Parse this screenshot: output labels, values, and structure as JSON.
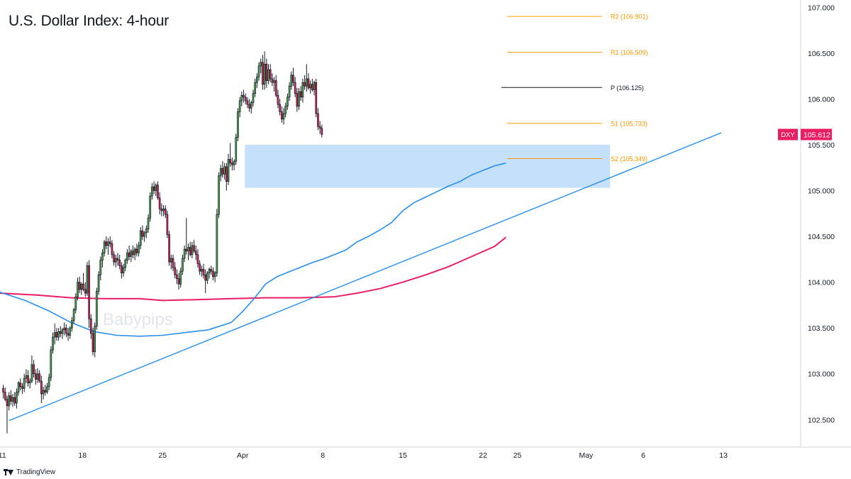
{
  "title": "U.S. Dollar Index: 4-hour",
  "watermark": "Babypips",
  "footer": {
    "brand": "TradingView"
  },
  "colors": {
    "up": "#4caf50",
    "down": "#e91e63",
    "wick": "#131722",
    "sma100": "#2a8ee8",
    "sma200": "#e91e63",
    "trendline": "#2a8ee8",
    "pivot": "#131722",
    "levels": "#ff9800",
    "zone": "#bbdaf9",
    "price_tag": "#e91e63"
  },
  "chart_data": {
    "type": "candlestick",
    "symbol": "DXY",
    "last_price": "105.612",
    "y_axis": {
      "min": 102.2,
      "max": 107.08,
      "ticks": [
        "102.500",
        "103.000",
        "103.500",
        "104.000",
        "104.500",
        "105.000",
        "105.500",
        "106.000",
        "106.500",
        "107.000"
      ]
    },
    "x_axis": {
      "ticks": [
        {
          "label": "11",
          "x": 0
        },
        {
          "label": "18",
          "x": 7
        },
        {
          "label": "25",
          "x": 14
        },
        {
          "label": "Apr",
          "x": 21
        },
        {
          "label": "8",
          "x": 28
        },
        {
          "label": "15",
          "x": 35
        },
        {
          "label": "22",
          "x": 42
        },
        {
          "label": "25",
          "x": 45
        },
        {
          "label": "May",
          "x": 51
        },
        {
          "label": "6",
          "x": 56
        },
        {
          "label": "13",
          "x": 63
        }
      ],
      "range": [
        -0.2,
        69.5
      ]
    },
    "pivot_levels": [
      {
        "name": "R2",
        "label": "R2 (106.901)",
        "value": 106.901
      },
      {
        "name": "R1",
        "label": "R1 (106.509)",
        "value": 106.509
      },
      {
        "name": "P",
        "label": "P (106.125)",
        "value": 106.125
      },
      {
        "name": "S1",
        "label": "S1 (105.733)",
        "value": 105.733
      },
      {
        "name": "S2",
        "label": "S2 (105.349)",
        "value": 105.349
      }
    ],
    "pivot_start_x": 44.1,
    "pivot_end_x": 52.4,
    "zone": {
      "x_start": 21.2,
      "x_end": 53.1,
      "low": 105.03,
      "high": 105.5
    },
    "trendline": [
      [
        0.6,
        102.49
      ],
      [
        62.8,
        105.63
      ]
    ],
    "sma100": [
      [
        -0.2,
        103.89
      ],
      [
        2,
        103.8
      ],
      [
        4,
        103.69
      ],
      [
        6,
        103.56
      ],
      [
        8,
        103.46
      ],
      [
        10,
        103.42
      ],
      [
        12,
        103.41
      ],
      [
        14,
        103.42
      ],
      [
        16,
        103.45
      ],
      [
        18,
        103.48
      ],
      [
        20,
        103.56
      ],
      [
        21,
        103.68
      ],
      [
        22,
        103.82
      ],
      [
        23,
        103.98
      ],
      [
        24,
        104.06
      ],
      [
        25,
        104.11
      ],
      [
        26,
        104.16
      ],
      [
        27,
        104.21
      ],
      [
        28,
        104.25
      ],
      [
        29,
        104.3
      ],
      [
        30,
        104.35
      ],
      [
        31,
        104.44
      ],
      [
        32,
        104.5
      ],
      [
        33,
        104.57
      ],
      [
        34,
        104.65
      ],
      [
        35,
        104.78
      ],
      [
        36,
        104.87
      ],
      [
        37,
        104.93
      ],
      [
        38,
        104.99
      ],
      [
        39,
        105.05
      ],
      [
        40,
        105.1
      ],
      [
        41,
        105.17
      ],
      [
        42,
        105.22
      ],
      [
        43,
        105.27
      ],
      [
        44,
        105.3
      ]
    ],
    "sma200": [
      [
        -0.2,
        103.88
      ],
      [
        3,
        103.86
      ],
      [
        6,
        103.83
      ],
      [
        9,
        103.82
      ],
      [
        12,
        103.82
      ],
      [
        14,
        103.8
      ],
      [
        17,
        103.81
      ],
      [
        20,
        103.82
      ],
      [
        23,
        103.83
      ],
      [
        26,
        103.83
      ],
      [
        29,
        103.84
      ],
      [
        31,
        103.88
      ],
      [
        33,
        103.93
      ],
      [
        35,
        104.0
      ],
      [
        37,
        104.08
      ],
      [
        39,
        104.17
      ],
      [
        41,
        104.28
      ],
      [
        43,
        104.39
      ],
      [
        44,
        104.49
      ]
    ],
    "candles_per_day": 6,
    "candles": [
      [
        102.84,
        102.88,
        102.73,
        102.8
      ],
      [
        102.8,
        102.85,
        102.7,
        102.72
      ],
      [
        102.72,
        102.76,
        102.35,
        102.65
      ],
      [
        102.65,
        102.8,
        102.6,
        102.76
      ],
      [
        102.76,
        102.82,
        102.66,
        102.7
      ],
      [
        102.7,
        102.78,
        102.64,
        102.74
      ],
      [
        102.74,
        102.8,
        102.65,
        102.68
      ],
      [
        102.68,
        102.84,
        102.62,
        102.8
      ],
      [
        102.8,
        102.92,
        102.76,
        102.9
      ],
      [
        102.9,
        102.95,
        102.82,
        102.86
      ],
      [
        102.86,
        102.9,
        102.78,
        102.84
      ],
      [
        102.84,
        103.0,
        102.8,
        102.95
      ],
      [
        102.95,
        103.05,
        102.9,
        102.98
      ],
      [
        102.98,
        103.04,
        102.86,
        102.9
      ],
      [
        102.9,
        102.95,
        102.84,
        102.92
      ],
      [
        102.92,
        103.2,
        102.9,
        103.1
      ],
      [
        103.1,
        103.15,
        102.96,
        103.0
      ],
      [
        103.0,
        103.05,
        102.88,
        102.94
      ],
      [
        102.94,
        103.06,
        102.9,
        103.0
      ],
      [
        103.0,
        103.04,
        102.9,
        102.92
      ],
      [
        102.92,
        102.98,
        102.68,
        102.78
      ],
      [
        102.78,
        102.86,
        102.72,
        102.82
      ],
      [
        102.82,
        102.88,
        102.76,
        102.8
      ],
      [
        102.8,
        102.9,
        102.78,
        102.86
      ],
      [
        102.86,
        103.0,
        102.82,
        102.96
      ],
      [
        102.96,
        103.3,
        102.92,
        103.26
      ],
      [
        103.26,
        103.45,
        103.22,
        103.4
      ],
      [
        103.4,
        103.55,
        103.32,
        103.45
      ],
      [
        103.45,
        103.5,
        103.36,
        103.4
      ],
      [
        103.4,
        103.5,
        103.36,
        103.46
      ],
      [
        103.46,
        103.52,
        103.4,
        103.44
      ],
      [
        103.44,
        103.5,
        103.38,
        103.48
      ],
      [
        103.48,
        103.56,
        103.42,
        103.5
      ],
      [
        103.5,
        103.54,
        103.4,
        103.44
      ],
      [
        103.44,
        103.5,
        103.36,
        103.42
      ],
      [
        103.42,
        103.52,
        103.38,
        103.5
      ],
      [
        103.5,
        103.62,
        103.46,
        103.58
      ],
      [
        103.58,
        103.72,
        103.55,
        103.7
      ],
      [
        103.7,
        103.88,
        103.66,
        103.84
      ],
      [
        103.84,
        104.05,
        103.8,
        104.0
      ],
      [
        104.0,
        104.06,
        103.88,
        103.92
      ],
      [
        103.92,
        104.0,
        103.86,
        103.98
      ],
      [
        103.98,
        104.1,
        103.9,
        103.92
      ],
      [
        103.92,
        104.0,
        103.84,
        103.88
      ],
      [
        103.88,
        104.22,
        103.85,
        104.18
      ],
      [
        104.18,
        104.24,
        103.5,
        103.6
      ],
      [
        103.6,
        103.65,
        103.38,
        103.44
      ],
      [
        103.44,
        103.5,
        103.2,
        103.24
      ],
      [
        103.24,
        103.56,
        103.18,
        103.52
      ],
      [
        103.52,
        103.94,
        103.48,
        103.9
      ],
      [
        103.9,
        104.12,
        103.86,
        104.08
      ],
      [
        104.08,
        104.28,
        104.02,
        104.24
      ],
      [
        104.24,
        104.36,
        104.16,
        104.32
      ],
      [
        104.32,
        104.46,
        104.28,
        104.44
      ],
      [
        104.44,
        104.5,
        104.36,
        104.4
      ],
      [
        104.4,
        104.48,
        104.3,
        104.44
      ],
      [
        104.44,
        104.5,
        104.38,
        104.42
      ],
      [
        104.42,
        104.46,
        104.26,
        104.3
      ],
      [
        104.3,
        104.34,
        104.18,
        104.22
      ],
      [
        104.22,
        104.3,
        104.16,
        104.26
      ],
      [
        104.26,
        104.32,
        104.18,
        104.24
      ],
      [
        104.24,
        104.3,
        104.14,
        104.18
      ],
      [
        104.18,
        104.22,
        104.04,
        104.1
      ],
      [
        104.1,
        104.2,
        104.06,
        104.16
      ],
      [
        104.16,
        104.26,
        104.12,
        104.24
      ],
      [
        104.24,
        104.36,
        104.2,
        104.32
      ],
      [
        104.32,
        104.4,
        104.24,
        104.28
      ],
      [
        104.28,
        104.36,
        104.22,
        104.34
      ],
      [
        104.34,
        104.4,
        104.26,
        104.3
      ],
      [
        104.3,
        104.38,
        104.24,
        104.36
      ],
      [
        104.36,
        104.42,
        104.28,
        104.32
      ],
      [
        104.32,
        104.44,
        104.28,
        104.4
      ],
      [
        104.4,
        104.6,
        104.36,
        104.56
      ],
      [
        104.56,
        104.62,
        104.46,
        104.5
      ],
      [
        104.5,
        104.56,
        104.44,
        104.54
      ],
      [
        104.54,
        104.62,
        104.48,
        104.58
      ],
      [
        104.58,
        104.74,
        104.54,
        104.7
      ],
      [
        104.7,
        104.98,
        104.66,
        104.94
      ],
      [
        104.94,
        105.08,
        104.9,
        105.04
      ],
      [
        105.04,
        105.1,
        104.96,
        105.0
      ],
      [
        105.0,
        105.08,
        104.94,
        105.06
      ],
      [
        105.06,
        105.1,
        104.9,
        104.92
      ],
      [
        104.92,
        104.98,
        104.74,
        104.8
      ],
      [
        104.8,
        104.86,
        104.72,
        104.78
      ],
      [
        104.78,
        104.84,
        104.72,
        104.8
      ],
      [
        104.8,
        104.84,
        104.7,
        104.74
      ],
      [
        104.74,
        104.78,
        104.48,
        104.52
      ],
      [
        104.52,
        104.56,
        104.18,
        104.22
      ],
      [
        104.22,
        104.3,
        104.14,
        104.26
      ],
      [
        104.26,
        104.3,
        104.12,
        104.16
      ],
      [
        104.16,
        104.22,
        104.04,
        104.08
      ],
      [
        104.08,
        104.14,
        103.98,
        104.04
      ],
      [
        104.04,
        104.1,
        103.92,
        103.98
      ],
      [
        103.98,
        104.16,
        103.94,
        104.12
      ],
      [
        104.12,
        104.3,
        104.08,
        104.26
      ],
      [
        104.26,
        104.4,
        104.22,
        104.36
      ],
      [
        104.36,
        104.7,
        104.3,
        104.34
      ],
      [
        104.34,
        104.42,
        104.24,
        104.38
      ],
      [
        104.38,
        104.44,
        104.28,
        104.3
      ],
      [
        104.3,
        104.44,
        104.26,
        104.4
      ],
      [
        104.4,
        104.46,
        104.32,
        104.34
      ],
      [
        104.34,
        104.4,
        104.24,
        104.3
      ],
      [
        104.3,
        104.36,
        104.16,
        104.2
      ],
      [
        104.2,
        104.24,
        104.08,
        104.12
      ],
      [
        104.12,
        104.18,
        104.06,
        104.14
      ],
      [
        104.14,
        104.2,
        104.04,
        104.08
      ],
      [
        104.08,
        104.14,
        103.88,
        104.02
      ],
      [
        104.02,
        104.12,
        103.98,
        104.1
      ],
      [
        104.1,
        104.16,
        104.04,
        104.14
      ],
      [
        104.14,
        104.18,
        104.08,
        104.12
      ],
      [
        104.12,
        104.16,
        104.02,
        104.06
      ],
      [
        104.06,
        104.12,
        104.0,
        104.1
      ],
      [
        104.1,
        104.8,
        104.06,
        104.74
      ],
      [
        104.74,
        105.2,
        104.7,
        105.16
      ],
      [
        105.16,
        105.28,
        105.1,
        105.24
      ],
      [
        105.24,
        105.32,
        105.14,
        105.18
      ],
      [
        105.18,
        105.3,
        105.12,
        105.26
      ],
      [
        105.26,
        105.3,
        105.0,
        105.1
      ],
      [
        105.1,
        105.4,
        105.06,
        105.34
      ],
      [
        105.34,
        105.52,
        105.26,
        105.3
      ],
      [
        105.3,
        105.36,
        105.22,
        105.28
      ],
      [
        105.28,
        105.34,
        105.22,
        105.32
      ],
      [
        105.32,
        105.62,
        105.28,
        105.58
      ],
      [
        105.58,
        105.9,
        105.54,
        105.86
      ],
      [
        105.86,
        106.02,
        105.8,
        105.98
      ],
      [
        105.98,
        106.08,
        105.92,
        106.04
      ],
      [
        106.04,
        106.1,
        105.96,
        106.02
      ],
      [
        106.02,
        106.06,
        105.94,
        105.98
      ],
      [
        105.98,
        106.02,
        105.9,
        105.94
      ],
      [
        105.94,
        106.0,
        105.86,
        105.9
      ],
      [
        105.9,
        105.98,
        105.84,
        105.96
      ],
      [
        105.96,
        106.1,
        105.92,
        106.06
      ],
      [
        106.06,
        106.22,
        106.02,
        106.18
      ],
      [
        106.18,
        106.28,
        106.12,
        106.24
      ],
      [
        106.24,
        106.4,
        106.2,
        106.36
      ],
      [
        106.36,
        106.44,
        106.28,
        106.4
      ],
      [
        106.4,
        106.48,
        106.1,
        106.16
      ],
      [
        106.16,
        106.52,
        106.1,
        106.38
      ],
      [
        106.38,
        106.44,
        106.12,
        106.2
      ],
      [
        106.2,
        106.38,
        106.16,
        106.32
      ],
      [
        106.32,
        106.38,
        106.18,
        106.22
      ],
      [
        106.22,
        106.28,
        106.14,
        106.18
      ],
      [
        106.18,
        106.24,
        106.08,
        106.2
      ],
      [
        106.2,
        106.26,
        106.02,
        106.04
      ],
      [
        106.04,
        106.1,
        105.9,
        105.94
      ],
      [
        105.94,
        106.0,
        105.82,
        105.86
      ],
      [
        105.86,
        105.92,
        105.74,
        105.78
      ],
      [
        105.78,
        105.9,
        105.72,
        105.84
      ],
      [
        105.84,
        105.96,
        105.8,
        105.92
      ],
      [
        105.92,
        106.06,
        105.88,
        106.02
      ],
      [
        106.02,
        106.18,
        105.98,
        106.14
      ],
      [
        106.14,
        106.3,
        106.1,
        106.26
      ],
      [
        106.26,
        106.34,
        106.14,
        106.18
      ],
      [
        106.18,
        106.24,
        106.02,
        106.06
      ],
      [
        106.06,
        106.12,
        105.86,
        105.92
      ],
      [
        105.92,
        106.12,
        105.88,
        106.08
      ],
      [
        106.08,
        106.14,
        105.98,
        106.02
      ],
      [
        106.02,
        106.22,
        105.96,
        106.18
      ],
      [
        106.18,
        106.26,
        106.1,
        106.14
      ],
      [
        106.14,
        106.38,
        106.08,
        106.22
      ],
      [
        106.22,
        106.28,
        106.1,
        106.12
      ],
      [
        106.12,
        106.2,
        106.06,
        106.16
      ],
      [
        106.16,
        106.22,
        106.08,
        106.1
      ],
      [
        106.1,
        106.2,
        106.04,
        106.18
      ],
      [
        106.18,
        106.22,
        105.8,
        105.84
      ],
      [
        105.84,
        105.9,
        105.66,
        105.7
      ],
      [
        105.7,
        105.76,
        105.62,
        105.68
      ],
      [
        105.68,
        105.72,
        105.58,
        105.612
      ]
    ]
  }
}
